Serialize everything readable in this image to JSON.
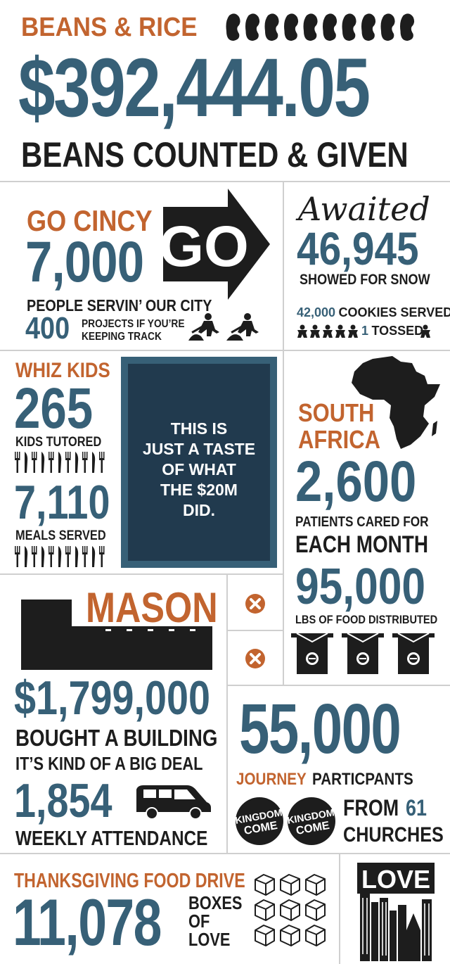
{
  "colors": {
    "orange": "#c2642f",
    "blue": "#376077",
    "black": "#1d1d1d",
    "navy": "#213a4e",
    "divider": "#cfcfcf"
  },
  "header": {
    "title": "BEANS & RICE",
    "amount": "$392,444.05",
    "subtitle": "BEANS COUNTED & GIVEN",
    "icon": "beans-icon"
  },
  "go_cincy": {
    "title": "GO CINCY",
    "number": "7,000",
    "label": "PEOPLE SERVIN’ OUR CITY",
    "projects_number": "400",
    "projects_label_1": "PROJECTS IF YOU’RE",
    "projects_label_2": "KEEPING TRACK",
    "arrow_text": "GO",
    "icon": "go-arrow-icon",
    "workers_icon": "shovel-worker-icon"
  },
  "awaited": {
    "title": "Awaited",
    "number": "46,945",
    "label": "SHOWED FOR SNOW",
    "cookies_number": "42,000",
    "cookies_label": "COOKIES SERVED",
    "tossed_number": "1",
    "tossed_label": "TOSSED",
    "icon": "cookie-icon"
  },
  "whiz_kids": {
    "title": "WHIZ KIDS",
    "kids_number": "265",
    "kids_label": "KIDS TUTORED",
    "meals_number": "7,110",
    "meals_label": "MEALS SERVED",
    "icon": "fork-knife-icon"
  },
  "center_box": {
    "line1": "THIS IS",
    "line2": "JUST A TASTE",
    "line3": "OF WHAT",
    "line4": "THE $20M",
    "line5": "DID."
  },
  "south_africa": {
    "title_1": "SOUTH",
    "title_2": "AFRICA",
    "patients_number": "2,600",
    "patients_label_1": "PATIENTS CARED FOR",
    "patients_label_2": "EACH MONTH",
    "food_number": "95,000",
    "food_label": "LBS OF FOOD DISTRIBUTED",
    "icon": "africa-map-icon",
    "box_icon": "food-box-icon"
  },
  "mason": {
    "title": "MASON",
    "amount": "$1,799,000",
    "label_1": "BOUGHT A BUILDING",
    "label_2": "IT’S KIND OF A BIG DEAL",
    "attendance_number": "1,854",
    "attendance_label": "WEEKLY ATTENDANCE",
    "building_icon": "building-icon",
    "van_icon": "van-icon",
    "x_icon": "close-circle-icon"
  },
  "journey": {
    "number": "55,000",
    "label_orange": "JOURNEY",
    "label_black": "PARTICPANTS",
    "badge_line1": "KINGDOM",
    "badge_line2": "COME",
    "from_text": "FROM",
    "churches_number": "61",
    "churches_label": "CHURCHES"
  },
  "thanksgiving": {
    "title": "THANKSGIVING FOOD DRIVE",
    "number": "11,078",
    "label_1": "BOXES",
    "label_2": "OF",
    "label_3": "LOVE",
    "icon": "box-icon"
  },
  "love": {
    "text": "LOVE",
    "icon": "city-skyline-icon"
  }
}
